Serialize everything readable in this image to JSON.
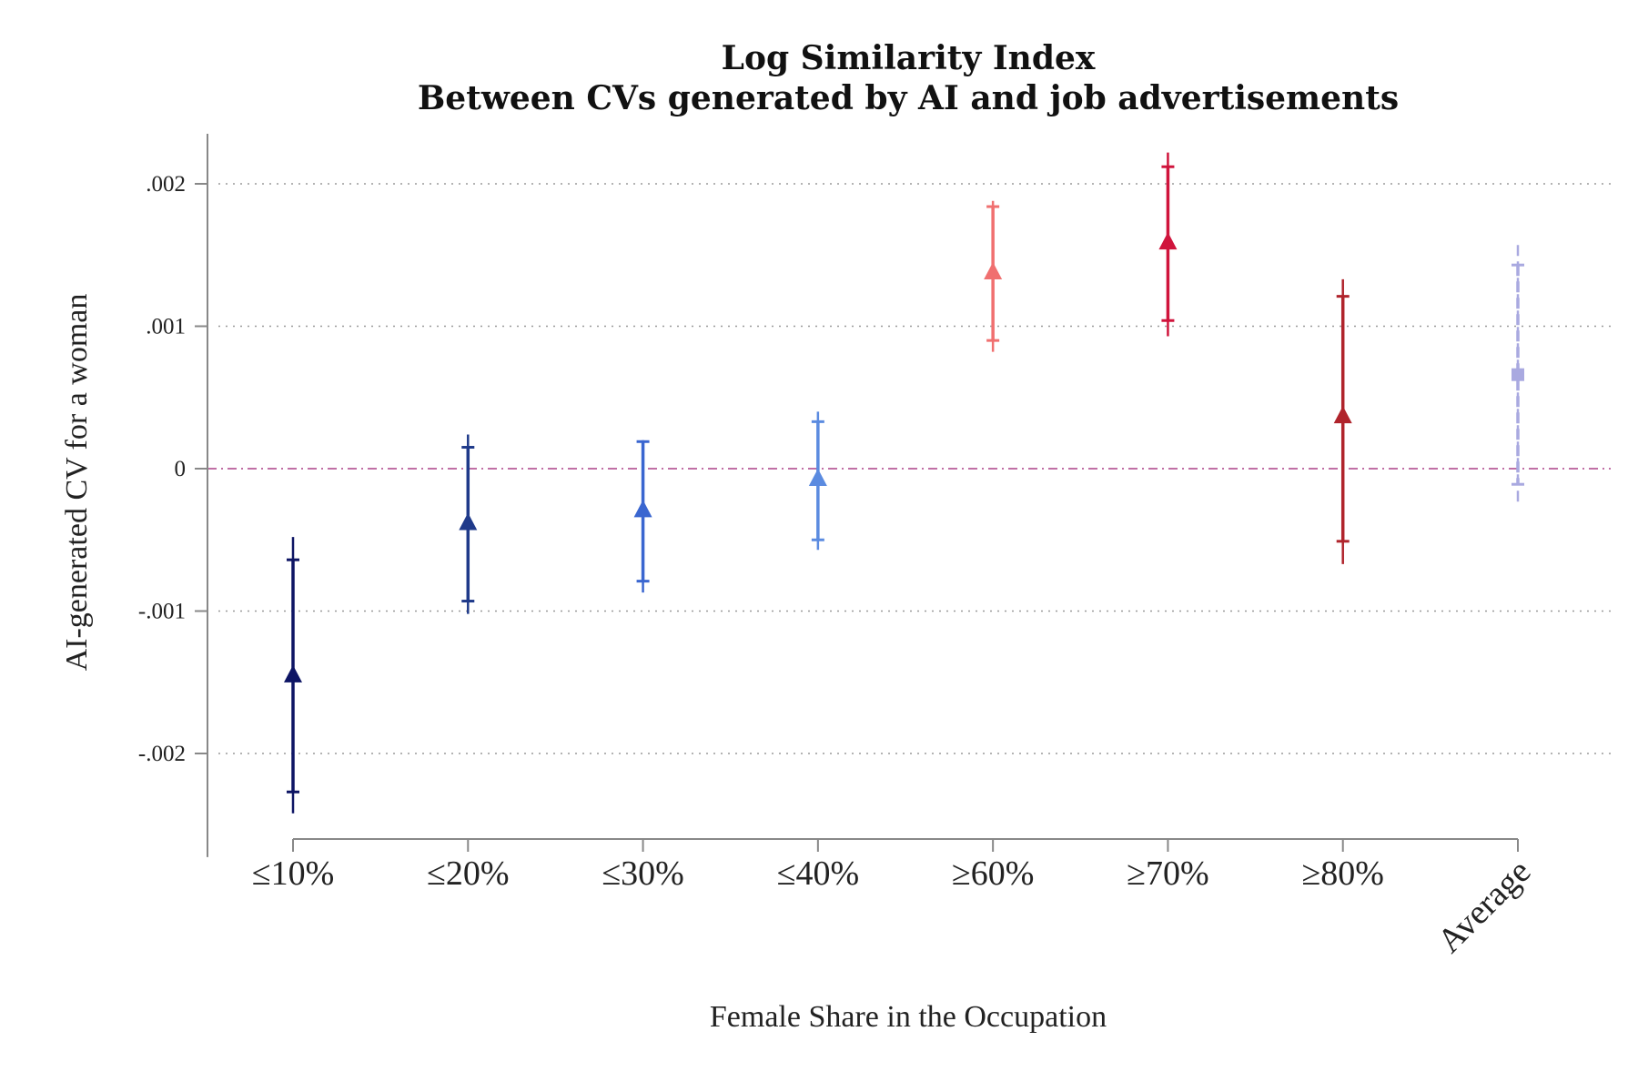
{
  "chart_data": {
    "type": "scatter",
    "title": "Log Similarity Index",
    "subtitle": "Between CVs generated by AI and job advertisements",
    "xlabel": "Female Share in the Occupation",
    "ylabel": "AI-generated CV for a woman",
    "ylim": [
      -0.0026,
      0.0023
    ],
    "yticks": [
      {
        "value": 0.002,
        "label": ".002"
      },
      {
        "value": 0.001,
        "label": ".001"
      },
      {
        "value": 0,
        "label": "0"
      },
      {
        "value": -0.001,
        "label": "-.001"
      },
      {
        "value": -0.002,
        "label": "-.002"
      }
    ],
    "grid": true,
    "reference_line": 0,
    "points": [
      {
        "label": "≤10%",
        "estimate": -0.00145,
        "ci90": [
          -0.00227,
          -0.00064
        ],
        "ci95": [
          -0.00242,
          -0.00048
        ],
        "marker": "triangle",
        "color": "#0d1464"
      },
      {
        "label": "≤20%",
        "estimate": -0.00038,
        "ci90": [
          -0.00093,
          0.00015
        ],
        "ci95": [
          -0.00102,
          0.00024
        ],
        "marker": "triangle",
        "color": "#1f3a8a"
      },
      {
        "label": "≤30%",
        "estimate": -0.00029,
        "ci90": [
          -0.00079,
          0.00019
        ],
        "ci95": [
          -0.00087,
          0.0002
        ],
        "marker": "triangle",
        "color": "#3a66d0"
      },
      {
        "label": "≤40%",
        "estimate": -7e-05,
        "ci90": [
          -0.0005,
          0.00033
        ],
        "ci95": [
          -0.00057,
          0.0004
        ],
        "marker": "triangle",
        "color": "#5b8be0"
      },
      {
        "label": "≥60%",
        "estimate": 0.00138,
        "ci90": [
          0.0009,
          0.00184
        ],
        "ci95": [
          0.00082,
          0.00188
        ],
        "marker": "triangle",
        "color": "#f07070"
      },
      {
        "label": "≥70%",
        "estimate": 0.00159,
        "ci90": [
          0.00104,
          0.00212
        ],
        "ci95": [
          0.00093,
          0.00222
        ],
        "marker": "triangle",
        "color": "#d0143c"
      },
      {
        "label": "≥80%",
        "estimate": 0.00037,
        "ci90": [
          -0.00051,
          0.00121
        ],
        "ci95": [
          -0.00067,
          0.00133
        ],
        "marker": "triangle",
        "color": "#b0242c"
      },
      {
        "label": "Average",
        "estimate": 0.00066,
        "ci90": [
          -0.00011,
          0.00143
        ],
        "ci95": [
          -0.00026,
          0.00157
        ],
        "marker": "square",
        "color": "#a9a9e0",
        "label_color": "#8e8ed6",
        "dashed": true
      }
    ]
  }
}
